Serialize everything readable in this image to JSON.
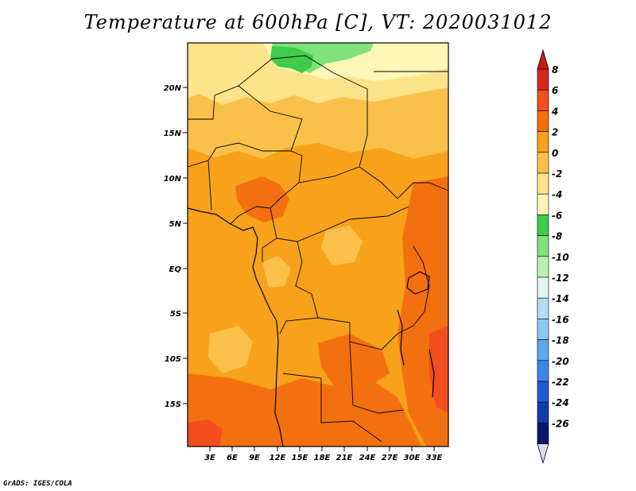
{
  "title": "Temperature at 600hPa [C], VT: 2020031012",
  "credit": "GrADS: IGES/COLA",
  "map": {
    "lat_labels": [
      "20N",
      "15N",
      "10N",
      "5N",
      "EQ",
      "5S",
      "10S",
      "15S"
    ],
    "lon_labels": [
      "3E",
      "6E",
      "9E",
      "12E",
      "15E",
      "18E",
      "21E",
      "24E",
      "27E",
      "30E",
      "33E"
    ],
    "field_colors": {
      "warmest": "#f24e1e",
      "warm": "#f37010",
      "mid": "#f7a21a",
      "mild": "#fbc04a",
      "cool": "#fde48a",
      "cold": "#fff6b8",
      "green_light": "#7fe27a",
      "green": "#3fcc4a"
    }
  },
  "colorbar": {
    "levels": [
      "8",
      "6",
      "4",
      "2",
      "0",
      "-2",
      "-4",
      "-6",
      "-8",
      "-10",
      "-12",
      "-14",
      "-16",
      "-18",
      "-20",
      "-22",
      "-24",
      "-26"
    ],
    "colors": [
      "#d9261c",
      "#f24e1e",
      "#f37010",
      "#f7a21a",
      "#fbc04a",
      "#fde48a",
      "#fff6b8",
      "#3fcc4a",
      "#7fe27a",
      "#b8f2b0",
      "#e6f6ee",
      "#b4dcf5",
      "#8cc8f2",
      "#5fa8ec",
      "#3c86e6",
      "#1e5cd6",
      "#143ca8",
      "#0b1668"
    ],
    "top_triangle_color": "#c51d12",
    "bottom_triangle_color": "#dcd9f5"
  }
}
